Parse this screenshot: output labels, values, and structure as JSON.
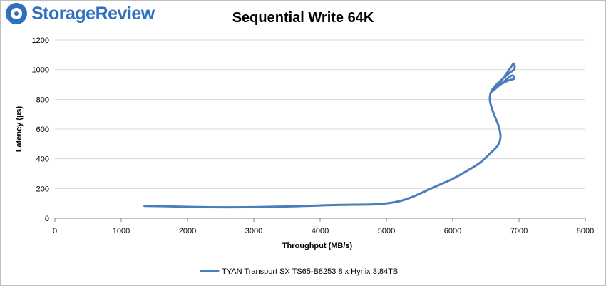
{
  "brand": {
    "logo_text": "StorageReview",
    "accent_color": "#2f6fbf"
  },
  "chart_data": {
    "type": "line",
    "title": "Sequential Write 64K",
    "xlabel": "Throughput (MB/s)",
    "ylabel": "Latency (µs)",
    "xlim": [
      0,
      8000
    ],
    "ylim": [
      0,
      1200
    ],
    "xticks": [
      0,
      1000,
      2000,
      3000,
      4000,
      5000,
      6000,
      7000,
      8000
    ],
    "yticks": [
      0,
      200,
      400,
      600,
      800,
      1000,
      1200
    ],
    "grid": true,
    "legend_position": "bottom",
    "series": [
      {
        "name": "TYAN Transport SX TS65-B8253 8 x Hynix 3.84TB",
        "color": "#4a7ebb",
        "points": [
          [
            1350,
            83
          ],
          [
            1700,
            80
          ],
          [
            2000,
            77
          ],
          [
            2500,
            74
          ],
          [
            3000,
            75
          ],
          [
            3500,
            79
          ],
          [
            4000,
            86
          ],
          [
            4300,
            90
          ],
          [
            4800,
            93
          ],
          [
            5000,
            100
          ],
          [
            5200,
            115
          ],
          [
            5400,
            145
          ],
          [
            5600,
            185
          ],
          [
            5800,
            225
          ],
          [
            6000,
            265
          ],
          [
            6200,
            315
          ],
          [
            6400,
            370
          ],
          [
            6550,
            430
          ],
          [
            6680,
            490
          ],
          [
            6720,
            545
          ],
          [
            6700,
            610
          ],
          [
            6640,
            680
          ],
          [
            6590,
            740
          ],
          [
            6560,
            795
          ],
          [
            6570,
            840
          ],
          [
            6620,
            880
          ],
          [
            6720,
            925
          ],
          [
            6850,
            975
          ],
          [
            6930,
            1005
          ],
          [
            6920,
            1040
          ],
          [
            6860,
            1005
          ],
          [
            6750,
            935
          ],
          [
            6640,
            875
          ],
          [
            6700,
            895
          ],
          [
            6830,
            925
          ],
          [
            6930,
            940
          ],
          [
            6890,
            960
          ],
          [
            6760,
            915
          ],
          [
            6600,
            855
          ]
        ]
      }
    ]
  }
}
